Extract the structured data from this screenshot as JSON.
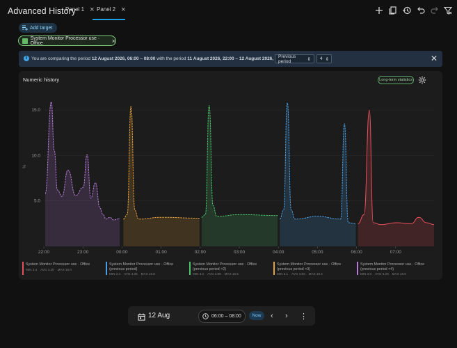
{
  "app": {
    "title": "Advanced History"
  },
  "tabs": [
    {
      "label": "Panel 1"
    },
    {
      "label": "Panel 2"
    }
  ],
  "toolbar": {
    "add_target_label": "Add target",
    "icons": [
      "plus-icon",
      "bookmark-icon",
      "history-icon",
      "undo-icon",
      "redo-icon",
      "filter-off-icon"
    ]
  },
  "target_chip": {
    "label": "System Monitor Processor use · Office"
  },
  "banner": {
    "text_prefix": "You are comparing the period ",
    "period_a": "12 August 2026, 06:00 – 08:00",
    "text_mid": " with the period ",
    "period_b": "11 August 2026, 22:00 – 12 August 2026, 06:00",
    "compare_mode": "Previous period",
    "compare_count": "4"
  },
  "card": {
    "title": "Numeric history",
    "lts_label": "Long-term statistics"
  },
  "chart_data": {
    "type": "line",
    "ylabel": "%",
    "ylim": [
      0,
      17
    ],
    "y_ticks": [
      "5.0",
      "10.0",
      "15.0"
    ],
    "x_ticks": [
      "22:00",
      "23:00",
      "00:00",
      "01:00",
      "02:00",
      "03:00",
      "04:00",
      "05:00",
      "06:00",
      "07:00"
    ],
    "series": [
      {
        "name": "System Monitor Processor use · Office (previous period ×4)",
        "color": "#b57bd9",
        "x": [
          0,
          0.08,
          0.12,
          0.16,
          0.22,
          0.3,
          0.4,
          0.5,
          0.55,
          0.6,
          0.66,
          0.72,
          0.76,
          0.8,
          0.85,
          0.9,
          0.95,
          0.98
        ],
        "y": [
          5.8,
          15.9,
          10.5,
          6.2,
          5.5,
          8.4,
          5.6,
          6.5,
          10.1,
          5.3,
          7.0,
          4.2,
          3.5,
          3.0,
          3.2,
          2.9,
          3.0,
          3.1
        ]
      },
      {
        "name": "System Monitor Processor use · Office (previous period ×3)",
        "color": "#e7a23a",
        "x": [
          0,
          0.05,
          0.1,
          0.15,
          0.2,
          0.5,
          1.0
        ],
        "y": [
          3.0,
          3.5,
          15.4,
          4.0,
          3.0,
          3.2,
          3.1
        ]
      },
      {
        "name": "System Monitor Processor use · Office (previous period ×2)",
        "color": "#4cc46a",
        "x": [
          0,
          0.05,
          0.1,
          0.15,
          0.2,
          0.5,
          1.0
        ],
        "y": [
          3.2,
          3.5,
          15.5,
          4.5,
          3.3,
          3.5,
          3.4
        ]
      },
      {
        "name": "System Monitor Processor use · Office (previous period)",
        "color": "#4a9fe6",
        "x": [
          0,
          0.05,
          0.1,
          0.15,
          0.2,
          0.5,
          0.8,
          0.85,
          0.9,
          1.0
        ],
        "y": [
          3.0,
          4.0,
          15.8,
          4.0,
          3.0,
          3.3,
          3.0,
          13.5,
          2.6,
          2.5
        ]
      },
      {
        "name": "System Monitor Processor use · Office",
        "color": "#e8505b",
        "x": [
          0,
          0.08,
          0.15,
          0.2,
          0.3,
          0.5,
          0.7,
          0.8,
          0.9,
          1.0
        ],
        "y": [
          2.5,
          3.5,
          15.0,
          2.6,
          2.4,
          2.6,
          2.5,
          3.2,
          2.6,
          2.4
        ]
      }
    ]
  },
  "legend": [
    {
      "line1": "System Monitor Processor use · Office",
      "line2": "",
      "min": "MIN 2.4",
      "avg": "AVG 3.20",
      "max": "MAX 15.0",
      "color": "#e8505b"
    },
    {
      "line1": "System Monitor Processor use · Office",
      "line2": "(previous period)",
      "min": "MIN 2.4",
      "avg": "AVG 4.35",
      "max": "MAX 15.8",
      "color": "#4a9fe6"
    },
    {
      "line1": "System Monitor Processor use · Office",
      "line2": "(previous period ×2)",
      "min": "MIN 3.2",
      "avg": "AVG 3.89",
      "max": "MAX 15.5",
      "color": "#4cc46a"
    },
    {
      "line1": "System Monitor Processor use · Office",
      "line2": "(previous period ×3)",
      "min": "MIN 3.1",
      "avg": "AVG 3.83",
      "max": "MAX 15.4",
      "color": "#e7a23a"
    },
    {
      "line1": "System Monitor Processor use · Office",
      "line2": "(previous period ×4)",
      "min": "MIN 3.0",
      "avg": "AVG 5.29",
      "max": "MAX 16.0",
      "color": "#b57bd9"
    }
  ],
  "bottom": {
    "date": "12 Aug",
    "range": "06:00 – 08:00",
    "now_label": "Now"
  }
}
